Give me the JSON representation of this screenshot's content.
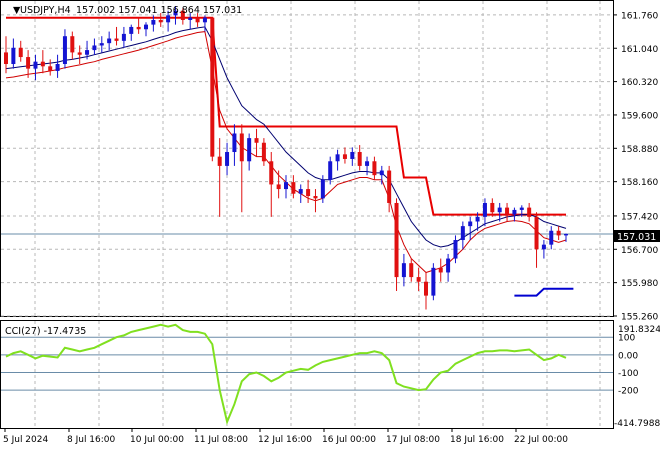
{
  "title": "USDJPY,H4",
  "ohlc": "157.002 157.041 156.864 157.031",
  "current_price": "157.031",
  "cci_label": "CCI(27) -17.4735",
  "price_axis": [
    "161.760",
    "161.040",
    "160.320",
    "159.600",
    "158.880",
    "158.160",
    "157.420",
    "156.700",
    "155.980",
    "155.260"
  ],
  "cci_axis": {
    "top": "191.8324",
    "l100": "100",
    "l0": "0.00",
    "lm100": "-100",
    "lm200": "-200",
    "bottom": "-414.7988"
  },
  "time_axis": [
    "5 Jul 2024",
    "8 Jul 16:00",
    "10 Jul 00:00",
    "11 Jul 08:00",
    "12 Jul 16:00",
    "16 Jul 00:00",
    "17 Jul 08:00",
    "18 Jul 16:00",
    "22 Jul 00:00"
  ],
  "colors": {
    "up": "#1414d2",
    "down": "#e01010",
    "ma_fast": "#000070",
    "ma_slow": "#d00000",
    "stop": "#e80000",
    "stop_low": "#0000d0",
    "cci": "#80e020",
    "grid": "#b8b8b8"
  },
  "chart_data": {
    "type": "candlestick",
    "ylim": [
      155.26,
      162.06
    ],
    "cci_ylim": [
      -414.8,
      191.8
    ],
    "candles": [
      [
        160.95,
        161.3,
        160.5,
        160.7
      ],
      [
        160.7,
        161.25,
        160.6,
        161.05
      ],
      [
        161.05,
        161.2,
        160.75,
        160.85
      ],
      [
        160.85,
        161.0,
        160.4,
        160.6
      ],
      [
        160.6,
        160.9,
        160.35,
        160.75
      ],
      [
        160.75,
        161.0,
        160.5,
        160.65
      ],
      [
        160.65,
        160.8,
        160.45,
        160.55
      ],
      [
        160.55,
        160.9,
        160.4,
        160.7
      ],
      [
        160.7,
        161.45,
        160.6,
        161.3
      ],
      [
        161.3,
        161.4,
        160.8,
        160.95
      ],
      [
        160.95,
        161.1,
        160.7,
        160.9
      ],
      [
        160.9,
        161.2,
        160.8,
        161.0
      ],
      [
        161.0,
        161.25,
        160.9,
        161.1
      ],
      [
        161.1,
        161.3,
        160.95,
        161.15
      ],
      [
        161.15,
        161.4,
        161.0,
        161.25
      ],
      [
        161.25,
        161.5,
        161.1,
        161.2
      ],
      [
        161.2,
        161.5,
        161.05,
        161.35
      ],
      [
        161.35,
        161.55,
        161.2,
        161.5
      ],
      [
        161.5,
        161.7,
        161.35,
        161.45
      ],
      [
        161.45,
        161.6,
        161.3,
        161.55
      ],
      [
        161.55,
        161.75,
        161.4,
        161.65
      ],
      [
        161.65,
        161.8,
        161.5,
        161.6
      ],
      [
        161.6,
        161.85,
        161.4,
        161.75
      ],
      [
        161.75,
        161.95,
        161.55,
        161.85
      ],
      [
        161.85,
        161.9,
        161.55,
        161.65
      ],
      [
        161.65,
        161.8,
        161.45,
        161.7
      ],
      [
        161.7,
        161.8,
        161.5,
        161.6
      ],
      [
        161.6,
        161.75,
        161.4,
        161.7
      ],
      [
        161.7,
        161.7,
        158.6,
        158.7
      ],
      [
        158.7,
        159.1,
        157.4,
        158.5
      ],
      [
        158.5,
        159.0,
        158.3,
        158.8
      ],
      [
        158.8,
        159.4,
        158.5,
        159.2
      ],
      [
        159.2,
        159.4,
        157.5,
        158.6
      ],
      [
        158.6,
        159.2,
        158.4,
        159.1
      ],
      [
        159.1,
        159.3,
        158.7,
        159.0
      ],
      [
        159.0,
        159.1,
        158.5,
        158.6
      ],
      [
        158.6,
        158.8,
        157.4,
        158.1
      ],
      [
        158.1,
        158.4,
        157.8,
        158.0
      ],
      [
        158.0,
        158.3,
        157.8,
        158.15
      ],
      [
        158.15,
        158.3,
        157.8,
        157.9
      ],
      [
        157.9,
        158.1,
        157.7,
        158.0
      ],
      [
        158.0,
        158.2,
        157.7,
        157.85
      ],
      [
        157.85,
        158.0,
        157.5,
        157.8
      ],
      [
        157.8,
        158.3,
        157.7,
        158.2
      ],
      [
        158.2,
        158.7,
        158.1,
        158.6
      ],
      [
        158.6,
        158.85,
        158.4,
        158.75
      ],
      [
        158.75,
        158.9,
        158.55,
        158.65
      ],
      [
        158.65,
        158.9,
        158.5,
        158.8
      ],
      [
        158.8,
        158.95,
        158.4,
        158.5
      ],
      [
        158.5,
        158.7,
        158.3,
        158.6
      ],
      [
        158.6,
        158.7,
        158.2,
        158.3
      ],
      [
        158.3,
        158.5,
        158.1,
        158.4
      ],
      [
        158.4,
        158.5,
        157.5,
        157.7
      ],
      [
        157.7,
        157.8,
        155.8,
        156.1
      ],
      [
        156.1,
        156.6,
        155.9,
        156.4
      ],
      [
        156.4,
        156.5,
        156.0,
        156.1
      ],
      [
        156.1,
        156.3,
        155.8,
        156.0
      ],
      [
        156.0,
        156.2,
        155.4,
        155.7
      ],
      [
        155.7,
        156.4,
        155.6,
        156.3
      ],
      [
        156.3,
        156.5,
        156.0,
        156.2
      ],
      [
        156.2,
        156.6,
        156.0,
        156.5
      ],
      [
        156.5,
        157.0,
        156.4,
        156.9
      ],
      [
        156.9,
        157.3,
        156.7,
        157.2
      ],
      [
        157.2,
        157.4,
        156.9,
        157.3
      ],
      [
        157.3,
        157.5,
        157.1,
        157.4
      ],
      [
        157.4,
        157.8,
        157.2,
        157.7
      ],
      [
        157.7,
        157.8,
        157.4,
        157.5
      ],
      [
        157.5,
        157.7,
        157.3,
        157.6
      ],
      [
        157.6,
        157.7,
        157.3,
        157.45
      ],
      [
        157.45,
        157.6,
        157.3,
        157.55
      ],
      [
        157.55,
        157.65,
        157.4,
        157.6
      ],
      [
        157.6,
        157.7,
        157.3,
        157.4
      ],
      [
        157.4,
        157.5,
        156.3,
        156.7
      ],
      [
        156.7,
        156.9,
        156.5,
        156.8
      ],
      [
        156.8,
        157.2,
        156.7,
        157.1
      ],
      [
        157.1,
        157.2,
        156.9,
        157.0
      ],
      [
        157.0,
        157.04,
        156.86,
        157.03
      ]
    ],
    "ma_fast": [
      160.6,
      160.62,
      160.64,
      160.66,
      160.68,
      160.7,
      160.72,
      160.74,
      160.78,
      160.8,
      160.83,
      160.86,
      160.9,
      160.94,
      160.98,
      161.02,
      161.06,
      161.1,
      161.14,
      161.18,
      161.23,
      161.28,
      161.32,
      161.38,
      161.42,
      161.45,
      161.48,
      161.5,
      161.2,
      160.8,
      160.4,
      160.1,
      159.8,
      159.65,
      159.5,
      159.4,
      159.2,
      159.0,
      158.8,
      158.65,
      158.5,
      158.35,
      158.25,
      158.2,
      158.2,
      158.25,
      158.3,
      158.35,
      158.38,
      158.38,
      158.35,
      158.35,
      158.2,
      157.9,
      157.6,
      157.3,
      157.1,
      156.9,
      156.8,
      156.75,
      156.78,
      156.85,
      156.95,
      157.05,
      157.15,
      157.25,
      157.3,
      157.35,
      157.4,
      157.42,
      157.45,
      157.45,
      157.4,
      157.3,
      157.25,
      157.2,
      157.15
    ],
    "ma_slow": [
      160.4,
      160.42,
      160.45,
      160.48,
      160.5,
      160.52,
      160.55,
      160.58,
      160.62,
      160.65,
      160.68,
      160.72,
      160.75,
      160.8,
      160.84,
      160.88,
      160.92,
      160.96,
      161.0,
      161.05,
      161.1,
      161.15,
      161.2,
      161.26,
      161.3,
      161.34,
      161.38,
      161.4,
      160.6,
      159.7,
      159.3,
      159.1,
      158.9,
      158.8,
      158.7,
      158.7,
      158.5,
      158.3,
      158.15,
      158.0,
      157.9,
      157.8,
      157.75,
      157.8,
      157.95,
      158.1,
      158.15,
      158.2,
      158.25,
      158.25,
      158.2,
      158.2,
      157.8,
      157.2,
      156.8,
      156.5,
      156.35,
      156.2,
      156.25,
      156.3,
      156.4,
      156.55,
      156.7,
      156.9,
      157.05,
      157.15,
      157.2,
      157.25,
      157.3,
      157.32,
      157.3,
      157.25,
      157.1,
      156.95,
      156.9,
      156.85,
      156.9
    ],
    "trail_stop": [
      [
        0,
        161.7
      ],
      [
        28,
        161.7
      ],
      [
        29,
        159.35
      ],
      [
        53,
        159.35
      ],
      [
        54,
        158.25
      ],
      [
        57,
        158.25
      ],
      [
        58,
        157.45
      ],
      [
        76,
        157.45
      ]
    ],
    "trail_low": [
      [
        69,
        155.7
      ],
      [
        72,
        155.7
      ],
      [
        73,
        155.85
      ],
      [
        77,
        155.85
      ]
    ],
    "cci": [
      -10,
      10,
      20,
      0,
      -20,
      -5,
      -10,
      -15,
      40,
      30,
      20,
      30,
      40,
      60,
      80,
      100,
      110,
      130,
      140,
      150,
      160,
      170,
      160,
      170,
      140,
      130,
      130,
      120,
      60,
      -200,
      -380,
      -280,
      -150,
      -110,
      -100,
      -120,
      -150,
      -130,
      -100,
      -90,
      -80,
      -85,
      -60,
      -40,
      -30,
      -20,
      -10,
      0,
      10,
      10,
      20,
      10,
      -30,
      -160,
      -180,
      -190,
      -200,
      -195,
      -140,
      -100,
      -90,
      -50,
      -30,
      -10,
      10,
      20,
      20,
      25,
      25,
      20,
      25,
      30,
      0,
      -30,
      -20,
      0,
      -17
    ]
  }
}
